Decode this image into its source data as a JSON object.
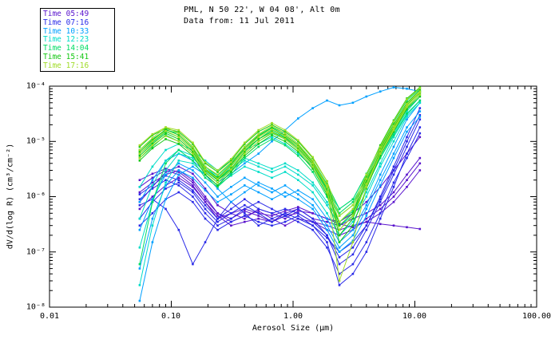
{
  "header": {
    "title_line1": "PML, N 50 22', W 04 08', Alt 0m",
    "title_line2": "Data from: 11 Jul 2011"
  },
  "legend": {
    "items": [
      {
        "label": "Time 05:49",
        "color": "#5A14CD"
      },
      {
        "label": "Time 07:16",
        "color": "#2A2AE8"
      },
      {
        "label": "Time 10:33",
        "color": "#00A0FF"
      },
      {
        "label": "Time 12:23",
        "color": "#00DCC8"
      },
      {
        "label": "Time 14:04",
        "color": "#00DC64"
      },
      {
        "label": "Time 15:41",
        "color": "#14C814"
      },
      {
        "label": "Time 17:16",
        "color": "#A0DC28"
      }
    ]
  },
  "chart_data": {
    "type": "line",
    "title": "PML, N 50 22', W 04 08', Alt 0m",
    "subtitle": "Data from: 11 Jul 2011",
    "xlabel": "Aerosol Size (µm)",
    "ylabel": "dV/d(log R) (cm³/cm⁻²)",
    "x_scale": "log",
    "y_scale": "log",
    "xlim": [
      0.01,
      100.0
    ],
    "ylim": [
      1e-08,
      0.0001
    ],
    "x_ticks": [
      "0.01",
      "0.10",
      "1.00",
      "10.00",
      "100.00"
    ],
    "y_ticks": [
      "10⁻⁴",
      "10⁻⁵",
      "10⁻⁶",
      "10⁻⁷",
      "10⁻⁸"
    ],
    "legend_position": "top-left",
    "grid": false,
    "marker": "square",
    "x": [
      0.055,
      0.07,
      0.09,
      0.115,
      0.15,
      0.19,
      0.24,
      0.31,
      0.4,
      0.52,
      0.67,
      0.86,
      1.1,
      1.45,
      1.9,
      2.4,
      3.1,
      4.0,
      5.2,
      6.7,
      8.6,
      11.0
    ],
    "series": [
      {
        "name": "05:49 a",
        "time": "05:49",
        "color": "#5A14CD",
        "values": [
          1.2e-06,
          1.8e-06,
          2.5e-06,
          3e-06,
          2e-06,
          1e-06,
          5e-07,
          4e-07,
          5.5e-07,
          4.5e-07,
          3.5e-07,
          5e-07,
          6e-07,
          4e-07,
          3.5e-07,
          3e-07,
          4e-07,
          5e-07,
          7e-07,
          1.2e-06,
          2.5e-06,
          5e-06
        ]
      },
      {
        "name": "05:49 b",
        "time": "05:49",
        "color": "#5A14CD",
        "values": [
          8e-07,
          1.5e-06,
          2.8e-06,
          3.5e-06,
          2.6e-06,
          1.4e-06,
          7e-07,
          5e-07,
          4e-07,
          6e-07,
          5e-07,
          4e-07,
          5.5e-07,
          5e-07,
          4e-07,
          3.2e-07,
          2.8e-07,
          3.5e-07,
          5e-07,
          8e-07,
          1.5e-06,
          3e-06
        ]
      },
      {
        "name": "05:49 c",
        "time": "05:49",
        "color": "#5A14CD",
        "values": [
          2e-06,
          2.6e-06,
          3.2e-06,
          2.8e-06,
          1.8e-06,
          9e-07,
          5e-07,
          3.5e-07,
          4.5e-07,
          5.5e-07,
          4e-07,
          3e-07,
          4e-07,
          3.5e-07,
          3e-07,
          2.5e-07,
          3e-07,
          3.5e-07,
          3.2e-07,
          3e-07,
          2.8e-07,
          2.6e-07
        ]
      },
      {
        "name": "05:49 d",
        "time": "05:49",
        "color": "#5A14CD",
        "values": [
          6e-07,
          1e-06,
          1.6e-06,
          2.2e-06,
          1.5e-06,
          8e-07,
          4.5e-07,
          3e-07,
          3.5e-07,
          4e-07,
          3.5e-07,
          4.5e-07,
          5e-07,
          3.5e-07,
          2.5e-07,
          2e-07,
          2.5e-07,
          4e-07,
          6e-07,
          1e-06,
          2e-06,
          4e-06
        ]
      },
      {
        "name": "05:49 e",
        "time": "05:49",
        "color": "#5A14CD",
        "values": [
          1.5e-06,
          2.2e-06,
          3e-06,
          2.5e-06,
          1.6e-06,
          8e-07,
          4e-07,
          5e-07,
          6e-07,
          5e-07,
          4.5e-07,
          5.5e-07,
          6.5e-07,
          5e-07,
          4e-07,
          3.5e-07,
          5e-07,
          8e-07,
          1.5e-06,
          3e-06,
          6e-06,
          1.2e-05
        ]
      },
      {
        "name": "07:16 a",
        "time": "07:16",
        "color": "#2A2AE8",
        "values": [
          7e-07,
          9e-07,
          6e-07,
          2.5e-07,
          6e-08,
          1.5e-07,
          4e-07,
          8e-07,
          5e-07,
          3e-07,
          4e-07,
          5e-07,
          4e-07,
          3e-07,
          1.5e-07,
          2.5e-08,
          4e-08,
          1e-07,
          4e-07,
          1.5e-06,
          6e-06,
          1.8e-05
        ]
      },
      {
        "name": "07:16 b",
        "time": "07:16",
        "color": "#2A2AE8",
        "values": [
          4e-07,
          8e-07,
          1.4e-06,
          1.8e-06,
          1.2e-06,
          6e-07,
          3.5e-07,
          5e-07,
          7e-07,
          5e-07,
          3.5e-07,
          4.5e-07,
          6e-07,
          4e-07,
          2e-07,
          6e-08,
          9e-08,
          2.5e-07,
          8e-07,
          2.5e-06,
          8e-06,
          2.5e-05
        ]
      },
      {
        "name": "07:16 c",
        "time": "07:16",
        "color": "#2A2AE8",
        "values": [
          9e-07,
          1.4e-06,
          2e-06,
          1.6e-06,
          1e-06,
          5e-07,
          3e-07,
          4e-07,
          6e-07,
          8e-07,
          6e-07,
          4.5e-07,
          3.5e-07,
          2.5e-07,
          1.2e-07,
          4e-08,
          6e-08,
          1.5e-07,
          5e-07,
          1.8e-06,
          5e-06,
          1.4e-05
        ]
      },
      {
        "name": "07:16 d",
        "time": "07:16",
        "color": "#2A2AE8",
        "values": [
          3e-07,
          5e-07,
          9e-07,
          1.2e-06,
          8e-07,
          4e-07,
          2.5e-07,
          3.5e-07,
          4.5e-07,
          3.5e-07,
          3e-07,
          3.5e-07,
          4.5e-07,
          3e-07,
          1.8e-07,
          1e-07,
          1.5e-07,
          3e-07,
          9e-07,
          3e-06,
          1e-05,
          3e-05
        ]
      },
      {
        "name": "07:16 e",
        "time": "07:16",
        "color": "#2A2AE8",
        "values": [
          1.1e-06,
          1.6e-06,
          2.4e-06,
          2e-06,
          1.3e-06,
          7e-07,
          4e-07,
          6e-07,
          9e-07,
          6e-07,
          5e-07,
          6e-07,
          5e-07,
          3.5e-07,
          2e-07,
          8e-08,
          1.2e-07,
          3e-07,
          1e-06,
          3.5e-06,
          1.2e-05,
          4e-05
        ]
      },
      {
        "name": "10:33 a",
        "time": "10:33",
        "color": "#00A0FF",
        "values": [
          1.3e-08,
          1.5e-07,
          9e-07,
          2.5e-06,
          3.5e-06,
          2.5e-06,
          1.4e-06,
          8e-07,
          1.2e-06,
          1.8e-06,
          1.4e-06,
          1e-06,
          1.3e-06,
          9e-07,
          4e-07,
          1.5e-07,
          2.5e-07,
          7e-07,
          2.5e-06,
          8e-06,
          2.5e-05,
          5e-05
        ]
      },
      {
        "name": "10:33 b",
        "time": "10:33",
        "color": "#00A0FF",
        "values": [
          2.5e-07,
          9e-07,
          2.5e-06,
          4e-06,
          3e-06,
          1.8e-06,
          1e-06,
          1.5e-06,
          2.2e-06,
          1.6e-06,
          1.2e-06,
          1.6e-06,
          1.1e-06,
          7e-07,
          3e-07,
          1.2e-07,
          2e-07,
          6e-07,
          2e-06,
          6e-06,
          1.8e-05,
          3.5e-05
        ]
      },
      {
        "name": "10:33 c",
        "time": "10:33",
        "color": "#00A0FF",
        "values": [
          8e-07,
          2e-06,
          4.5e-06,
          6e-06,
          4.5e-06,
          2.8e-06,
          1.8e-06,
          2.6e-06,
          4e-06,
          6e-06,
          1e-05,
          1.6e-05,
          2.6e-05,
          4e-05,
          5.5e-05,
          4.5e-05,
          5e-05,
          6.5e-05,
          8e-05,
          9.5e-05,
          9e-05,
          8e-05
        ]
      },
      {
        "name": "10:33 d",
        "time": "10:33",
        "color": "#00A0FF",
        "values": [
          5e-08,
          4e-07,
          1.6e-06,
          3e-06,
          2.2e-06,
          1.3e-06,
          8e-07,
          1.1e-06,
          1.6e-06,
          1.2e-06,
          9e-07,
          1.2e-06,
          9e-07,
          6e-07,
          2.5e-07,
          1e-07,
          1.6e-07,
          4.5e-07,
          1.6e-06,
          5e-06,
          1.5e-05,
          2.8e-05
        ]
      },
      {
        "name": "12:23 a",
        "time": "12:23",
        "color": "#00DCC8",
        "values": [
          1.2e-07,
          8e-07,
          3e-06,
          6e-06,
          5e-06,
          3e-06,
          2e-06,
          3e-06,
          4.5e-06,
          3.5e-06,
          2.8e-06,
          3.5e-06,
          2.5e-06,
          1.6e-06,
          7e-07,
          3e-07,
          4.5e-07,
          1.2e-06,
          4e-06,
          1.2e-05,
          3e-05,
          5.5e-05
        ]
      },
      {
        "name": "12:23 b",
        "time": "12:23",
        "color": "#00DCC8",
        "values": [
          1.5e-06,
          3.5e-06,
          7e-06,
          9e-06,
          7e-06,
          4.5e-06,
          3e-06,
          4.5e-06,
          7e-06,
          9e-06,
          1.2e-05,
          9e-06,
          6e-06,
          3.5e-06,
          1.4e-06,
          6e-07,
          9e-07,
          2.5e-06,
          7e-06,
          1.8e-05,
          4.5e-05,
          8e-05
        ]
      },
      {
        "name": "12:23 c",
        "time": "12:23",
        "color": "#00DCC8",
        "values": [
          4e-07,
          1.6e-06,
          4.5e-06,
          7e-06,
          5.5e-06,
          3.5e-06,
          2.2e-06,
          3.2e-06,
          5e-06,
          4e-06,
          3.2e-06,
          4e-06,
          3e-06,
          1.8e-06,
          8e-07,
          3.5e-07,
          5.5e-07,
          1.5e-06,
          5e-06,
          1.4e-05,
          3.5e-05,
          6.5e-05
        ]
      },
      {
        "name": "12:23 d",
        "time": "12:23",
        "color": "#00DCC8",
        "values": [
          2.5e-08,
          3e-07,
          1.8e-06,
          4.5e-06,
          4e-06,
          2.5e-06,
          1.6e-06,
          2.4e-06,
          3.5e-06,
          2.8e-06,
          2.2e-06,
          2.8e-06,
          2e-06,
          1.2e-06,
          5e-07,
          2e-07,
          3.5e-07,
          1e-06,
          3.5e-06,
          1e-05,
          2.8e-05,
          5e-05
        ]
      },
      {
        "name": "14:04 a",
        "time": "14:04",
        "color": "#00DC64",
        "values": [
          5e-06,
          8e-06,
          1.3e-05,
          1e-05,
          6e-06,
          2.8e-06,
          1.8e-06,
          3e-06,
          6e-06,
          1e-05,
          1.4e-05,
          1.1e-05,
          7e-06,
          3.5e-06,
          1.3e-06,
          4.5e-07,
          7e-07,
          2e-06,
          6e-06,
          1.6e-05,
          4e-05,
          7e-05
        ]
      },
      {
        "name": "14:04 b",
        "time": "14:04",
        "color": "#00DC64",
        "values": [
          7e-06,
          1.1e-05,
          1.6e-05,
          1.4e-05,
          8e-06,
          3.5e-06,
          2.4e-06,
          4e-06,
          8e-06,
          1.3e-05,
          1.8e-05,
          1.4e-05,
          9e-06,
          4.5e-06,
          1.7e-06,
          6e-07,
          9e-07,
          2.6e-06,
          8e-06,
          2.2e-05,
          5.5e-05,
          9e-05
        ]
      },
      {
        "name": "14:04 c",
        "time": "14:04",
        "color": "#00DC64",
        "values": [
          6e-08,
          8e-07,
          4e-06,
          7e-06,
          4.5e-06,
          2.2e-06,
          1.5e-06,
          2.5e-06,
          5e-06,
          8e-06,
          1.1e-05,
          8.5e-06,
          5.5e-06,
          2.8e-06,
          1e-06,
          3.5e-07,
          5.5e-07,
          1.6e-06,
          5e-06,
          1.3e-05,
          3.2e-05,
          5.5e-05
        ]
      },
      {
        "name": "14:04 d",
        "time": "14:04",
        "color": "#00DC64",
        "values": [
          6e-06,
          9.5e-06,
          1.5e-05,
          1.2e-05,
          7e-06,
          3e-06,
          2e-06,
          3.5e-06,
          7e-06,
          1.1e-05,
          1.6e-05,
          1.2e-05,
          8e-06,
          4e-06,
          1.5e-06,
          5e-07,
          8e-07,
          2.2e-06,
          7e-06,
          1.8e-05,
          4.5e-05,
          8e-05
        ]
      },
      {
        "name": "15:41 a",
        "time": "15:41",
        "color": "#14C814",
        "values": [
          5.5e-06,
          9e-06,
          1.4e-05,
          1.1e-05,
          6.5e-06,
          3e-06,
          2e-06,
          3.2e-06,
          6.5e-06,
          1.1e-05,
          1.5e-05,
          1.15e-05,
          7.5e-06,
          3.8e-06,
          1.4e-06,
          2e-07,
          4e-07,
          1.8e-06,
          6.5e-06,
          1.8e-05,
          4.5e-05,
          7.5e-05
        ]
      },
      {
        "name": "15:41 b",
        "time": "15:41",
        "color": "#14C814",
        "values": [
          8e-06,
          1.3e-05,
          1.7e-05,
          1.5e-05,
          9e-06,
          4e-06,
          2.8e-06,
          4.5e-06,
          9e-06,
          1.5e-05,
          2e-05,
          1.5e-05,
          1e-05,
          5e-06,
          1.9e-06,
          3e-07,
          5e-07,
          2.4e-06,
          8.5e-06,
          2.4e-05,
          6e-05,
          9.5e-05
        ]
      },
      {
        "name": "15:41 c",
        "time": "15:41",
        "color": "#14C814",
        "values": [
          4.5e-06,
          7.5e-06,
          1.1e-05,
          9e-06,
          5.5e-06,
          2.5e-06,
          1.6e-06,
          2.8e-06,
          5.5e-06,
          9e-06,
          1.3e-05,
          1e-05,
          6.5e-06,
          3.2e-06,
          1.1e-06,
          1.5e-07,
          3e-07,
          1.4e-06,
          5.5e-06,
          1.5e-05,
          3.8e-05,
          6.5e-05
        ]
      },
      {
        "name": "15:41 d",
        "time": "15:41",
        "color": "#14C814",
        "values": [
          6.5e-06,
          1.05e-05,
          1.65e-05,
          1.3e-05,
          7.5e-06,
          3.2e-06,
          2.2e-06,
          3.8e-06,
          7.5e-06,
          1.25e-05,
          1.75e-05,
          1.3e-05,
          8.5e-06,
          4.2e-06,
          1.6e-06,
          2.5e-07,
          4.5e-07,
          2e-06,
          7.5e-06,
          2e-05,
          5e-05,
          8.5e-05
        ]
      },
      {
        "name": "17:16 a",
        "time": "17:16",
        "color": "#A0DC28",
        "values": [
          6e-06,
          1e-05,
          1.55e-05,
          1.2e-05,
          7e-06,
          3.1e-06,
          2.1e-06,
          3.6e-06,
          7e-06,
          1.2e-05,
          1.65e-05,
          1.25e-05,
          8e-06,
          4e-06,
          1.5e-06,
          3.5e-07,
          6e-07,
          2.1e-06,
          7e-06,
          1.9e-05,
          4.8e-05,
          8e-05
        ]
      },
      {
        "name": "17:16 b",
        "time": "17:16",
        "color": "#A0DC28",
        "values": [
          8.5e-06,
          1.35e-05,
          1.8e-05,
          1.6e-05,
          9.5e-06,
          4.2e-06,
          3e-06,
          4.8e-06,
          9.5e-06,
          1.6e-05,
          2.15e-05,
          1.6e-05,
          1.05e-05,
          5.2e-06,
          1.9e-06,
          4.5e-07,
          7e-07,
          2.5e-06,
          8e-06,
          2.3e-05,
          5.8e-05,
          9.2e-05
        ]
      },
      {
        "name": "17:16 c",
        "time": "17:16",
        "color": "#A0DC28",
        "values": [
          5e-06,
          8.5e-06,
          1.25e-05,
          1e-05,
          6e-06,
          2.7e-06,
          1.8e-06,
          3.1e-06,
          6e-06,
          1e-05,
          1.45e-05,
          1.1e-05,
          7e-06,
          3.5e-06,
          1.2e-06,
          2.5e-07,
          4.5e-07,
          1.7e-06,
          6e-06,
          1.6e-05,
          4.2e-05,
          7e-05
        ]
      },
      {
        "name": "17:16 d",
        "time": "17:16",
        "color": "#A0DC28",
        "values": [
          7e-06,
          1.15e-05,
          1.8e-05,
          1.4e-05,
          8e-06,
          3.5e-06,
          2.5e-06,
          4.2e-06,
          8e-06,
          1.35e-05,
          1.9e-05,
          1.4e-05,
          9e-06,
          4.5e-06,
          1.6e-06,
          3e-08,
          1.5e-07,
          1.5e-06,
          6e-06,
          1.7e-05,
          4.4e-05,
          7.8e-05
        ]
      }
    ]
  }
}
